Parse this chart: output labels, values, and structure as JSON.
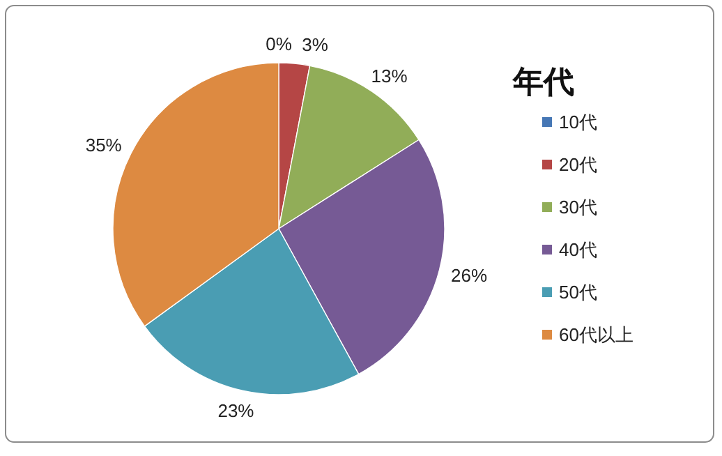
{
  "chart_data": {
    "type": "pie",
    "legend_title": "年代",
    "legend": "right",
    "categories": [
      "10代",
      "20代",
      "30代",
      "40代",
      "50代",
      "60代以上"
    ],
    "values": [
      0,
      3,
      13,
      26,
      23,
      35
    ],
    "value_labels": [
      "0%",
      "3%",
      "13%",
      "26%",
      "23%",
      "35%"
    ],
    "colors": [
      "#4677b5",
      "#b54645",
      "#91ad58",
      "#765a95",
      "#4a9db3",
      "#dd8a41"
    ]
  }
}
